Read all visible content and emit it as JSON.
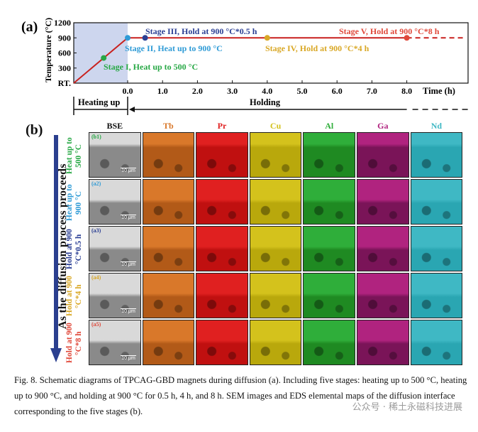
{
  "panel_a": {
    "label": "(a)",
    "ylabel": "Temperature (°C)",
    "xlabel": "Time (h)",
    "ytick_labels": [
      "RT.",
      "300",
      "600",
      "900",
      "1200"
    ],
    "xtick_labels": [
      "0.0",
      "1.0",
      "2.0",
      "3.0",
      "4.0",
      "5.0",
      "6.0",
      "7.0",
      "8.0"
    ],
    "phase_heating": "Heating up",
    "phase_holding": "Holding",
    "stages": [
      {
        "text": "Stage I, Heat up to 500 °C",
        "color": "#27a845"
      },
      {
        "text": "Stage II, Heat up to 900 °C",
        "color": "#2f9bd6"
      },
      {
        "text": "Stage III, Hold at 900 °C*0.5 h",
        "color": "#2a3e94"
      },
      {
        "text": "Stage IV, Hold at 900 °C*4 h",
        "color": "#d9a826"
      },
      {
        "text": "Stage V, Hold at 900 °C*8 h",
        "color": "#e0483a"
      }
    ],
    "line_color": "#c9211e",
    "heating_fill": "#cdd6ee"
  },
  "chart_data": {
    "type": "line",
    "xlabel": "Time (h)",
    "ylabel": "Temperature (°C)",
    "ylim": [
      0,
      1200
    ],
    "xlim": [
      0,
      8.6
    ],
    "series": [
      {
        "x": [
          0,
          0.5,
          4.0,
          8.0
        ],
        "y": [
          900,
          900,
          900,
          900
        ]
      }
    ],
    "markers": [
      {
        "label": "Stage I",
        "x": "heating",
        "y": 500
      },
      {
        "label": "Stage II",
        "x": 0,
        "y": 900
      },
      {
        "label": "Stage III",
        "x": 0.5,
        "y": 900
      },
      {
        "label": "Stage IV",
        "x": 4.0,
        "y": 900
      },
      {
        "label": "Stage V",
        "x": 8.0,
        "y": 900
      }
    ]
  },
  "panel_b": {
    "label": "(b)",
    "side_text": "As the diffusion process proceeds",
    "columns": [
      {
        "name": "BSE",
        "color": "#111111",
        "fill": "#8a8a8a"
      },
      {
        "name": "Tb",
        "color": "#d9782a",
        "fill": "#b25a18"
      },
      {
        "name": "Pr",
        "color": "#e02020",
        "fill": "#c01010"
      },
      {
        "name": "Cu",
        "color": "#d4c21c",
        "fill": "#b9a80c"
      },
      {
        "name": "Al",
        "color": "#2fae3a",
        "fill": "#1f8a22"
      },
      {
        "name": "Ga",
        "color": "#b0237f",
        "fill": "#7a1458"
      },
      {
        "name": "Nd",
        "color": "#3fb8c4",
        "fill": "#2aa6b2"
      }
    ],
    "rows": [
      {
        "label": "Heat up to 500 °C",
        "tag": "(b1)",
        "color": "#27a845"
      },
      {
        "label": "Heat up to 900 °C",
        "tag": "(a2)",
        "color": "#2f9bd6"
      },
      {
        "label": "Hold at 900 °C*0.5 h",
        "tag": "(a3)",
        "color": "#2a3e94"
      },
      {
        "label": "Hold at 900 °C*4 h",
        "tag": "(a4)",
        "color": "#d9a826"
      },
      {
        "label": "Hold at 900 °C*8 h",
        "tag": "(a5)",
        "color": "#e0483a"
      }
    ],
    "scale_bar": "10 μm"
  },
  "caption": "Fig. 8. Schematic diagrams of TPCAG-GBD magnets during diffusion (a). Including five stages: heating up to 500 °C, heating up to 900 °C, and holding at 900 °C for 0.5 h, 4 h, and 8 h. SEM images and EDS elemental maps of the diffusion interface corresponding to the five stages (b).",
  "watermark": "公众号 · 稀土永磁科技进展"
}
